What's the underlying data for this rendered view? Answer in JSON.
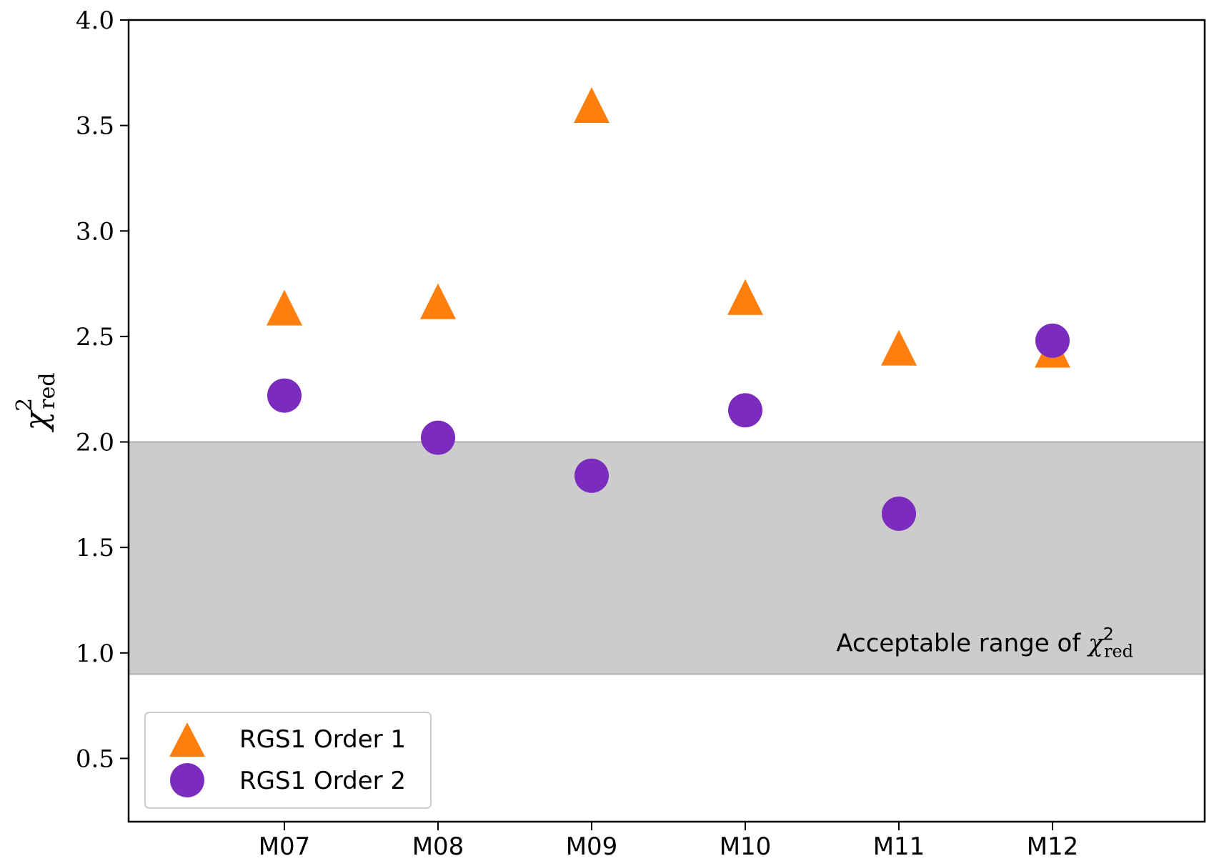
{
  "chart_data": {
    "type": "scatter",
    "categories": [
      "M07",
      "M08",
      "M09",
      "M10",
      "M11",
      "M12"
    ],
    "ylim": [
      0.2,
      4.0
    ],
    "yticks": [
      "0.5",
      "1.0",
      "1.5",
      "2.0",
      "2.5",
      "3.0",
      "3.5",
      "4.0"
    ],
    "ylabel": {
      "base": "χ",
      "sup": "2",
      "sub": "red"
    },
    "series": [
      {
        "name": "RGS1 Order 1",
        "marker": "triangle",
        "color": "#ff7f0e",
        "values": [
          2.62,
          2.65,
          3.58,
          2.67,
          2.43,
          2.42
        ]
      },
      {
        "name": "RGS1 Order 2",
        "marker": "circle",
        "color": "#7b2cbf",
        "values": [
          2.22,
          2.02,
          1.84,
          2.15,
          1.66,
          2.48
        ]
      }
    ],
    "band": {
      "ymin": 0.9,
      "ymax": 2.0,
      "color": "#cccccc",
      "label_text": "Acceptable range of ",
      "label_symbol": {
        "base": "χ",
        "sup": "2",
        "sub": "red"
      }
    },
    "legend": "lower-left",
    "grid": false
  }
}
